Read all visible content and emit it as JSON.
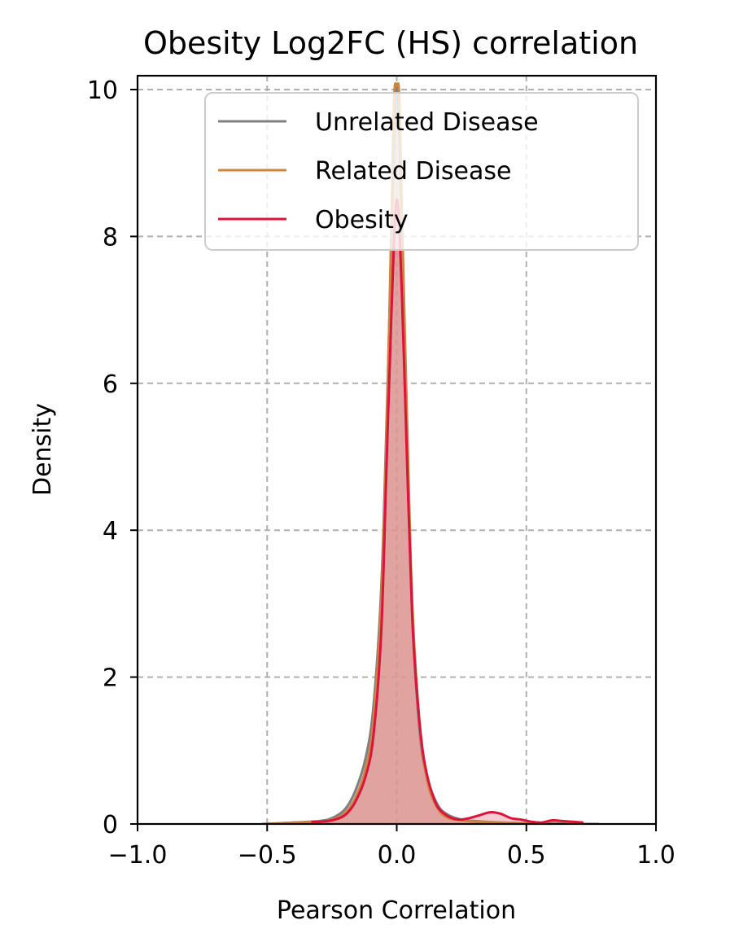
{
  "chart_data": {
    "type": "area",
    "title": "Obesity Log2FC (HS) correlation",
    "xlabel": "Pearson Correlation",
    "ylabel": "Density",
    "xlim": [
      -1.0,
      1.0
    ],
    "ylim": [
      0,
      10.05
    ],
    "x_ticks": [
      -1.0,
      -0.5,
      0.0,
      0.5,
      1.0
    ],
    "x_tick_labels": [
      "−1.0",
      "−0.5",
      "0.0",
      "0.5",
      "1.0"
    ],
    "y_ticks": [
      0,
      2,
      4,
      6,
      8,
      10
    ],
    "y_tick_labels": [
      "0",
      "2",
      "4",
      "6",
      "8",
      "10"
    ],
    "grid": true,
    "legend_position": "top-right",
    "series": [
      {
        "name": "Unrelated Disease",
        "color": "#808080",
        "fill": "#a0a0a0",
        "x": [
          -0.52,
          -0.4,
          -0.3,
          -0.25,
          -0.2,
          -0.16,
          -0.12,
          -0.09,
          -0.06,
          -0.04,
          -0.02,
          -0.01,
          0.0,
          0.01,
          0.02,
          0.04,
          0.06,
          0.09,
          0.12,
          0.16,
          0.2,
          0.25,
          0.3,
          0.4,
          0.5,
          0.6,
          0.7,
          0.78
        ],
        "values": [
          0.0,
          0.02,
          0.04,
          0.08,
          0.2,
          0.45,
          0.9,
          1.6,
          3.2,
          5.4,
          8.0,
          9.4,
          10.05,
          9.4,
          8.0,
          5.2,
          2.8,
          1.2,
          0.6,
          0.25,
          0.12,
          0.06,
          0.04,
          0.02,
          0.01,
          0.01,
          0.0,
          0.0
        ]
      },
      {
        "name": "Related Disease",
        "color": "#cd853f",
        "fill": "#d8a476",
        "x": [
          -0.5,
          -0.4,
          -0.3,
          -0.25,
          -0.2,
          -0.16,
          -0.12,
          -0.09,
          -0.06,
          -0.04,
          -0.02,
          -0.01,
          0.0,
          0.01,
          0.02,
          0.04,
          0.06,
          0.09,
          0.12,
          0.16,
          0.2,
          0.25,
          0.3,
          0.4,
          0.5,
          0.6,
          0.7
        ],
        "values": [
          0.0,
          0.02,
          0.03,
          0.06,
          0.15,
          0.35,
          0.75,
          1.4,
          3.0,
          5.2,
          8.3,
          9.9,
          10.05,
          9.9,
          8.3,
          5.5,
          3.0,
          1.3,
          0.55,
          0.2,
          0.08,
          0.05,
          0.03,
          0.02,
          0.01,
          0.0,
          0.0
        ]
      },
      {
        "name": "Obesity",
        "color": "#dc143c",
        "fill": "#f08a9c",
        "x": [
          -0.33,
          -0.3,
          -0.25,
          -0.2,
          -0.16,
          -0.12,
          -0.09,
          -0.06,
          -0.04,
          -0.02,
          0.0,
          0.02,
          0.04,
          0.06,
          0.08,
          0.1,
          0.12,
          0.14,
          0.16,
          0.2,
          0.24,
          0.28,
          0.32,
          0.36,
          0.4,
          0.44,
          0.48,
          0.52,
          0.56,
          0.6,
          0.64,
          0.68,
          0.72
        ],
        "values": [
          0.03,
          0.03,
          0.05,
          0.12,
          0.3,
          0.65,
          1.2,
          2.6,
          4.8,
          7.0,
          8.5,
          7.2,
          4.9,
          2.8,
          1.7,
          1.0,
          0.62,
          0.38,
          0.22,
          0.1,
          0.06,
          0.08,
          0.12,
          0.16,
          0.14,
          0.08,
          0.06,
          0.03,
          0.02,
          0.05,
          0.04,
          0.03,
          0.02
        ]
      }
    ]
  }
}
